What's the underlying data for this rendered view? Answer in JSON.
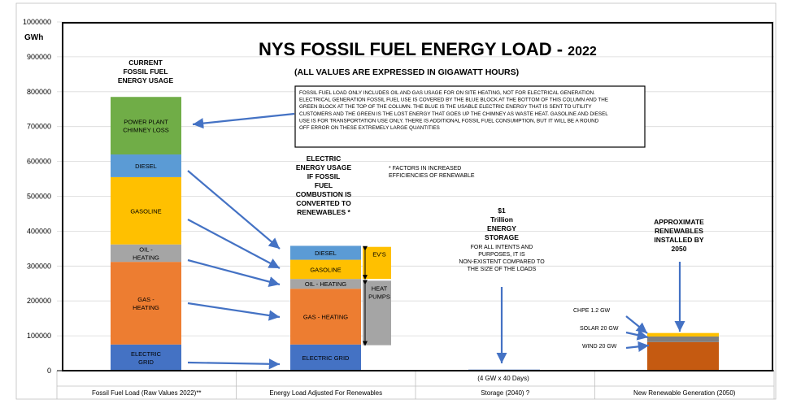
{
  "chart_data": {
    "type": "bar",
    "title": "NYS FOSSIL FUEL ENERGY LOAD - ",
    "title_year": "2022",
    "subtitle": "(ALL VALUES ARE EXPRESSED IN GIGAWATT HOURS)",
    "ylabel": "GWh",
    "ylim": [
      0,
      1000000
    ],
    "yticks": [
      "0",
      "100000",
      "200000",
      "300000",
      "400000",
      "500000",
      "600000",
      "700000",
      "800000",
      "900000",
      "1000000"
    ],
    "grid": true,
    "categories": [
      "Fossil Fuel Load (Raw Values 2022)**",
      "Energy Load Adjusted For Renewables",
      "Storage (2040) ?",
      "New Renewable Generation (2050)"
    ],
    "columns": [
      {
        "segments": [
          {
            "label": "ELECTRIC GRID",
            "value": 75000,
            "color": "#4472c4"
          },
          {
            "label": "GAS - HEATING",
            "value": 237000,
            "color": "#ed7d31"
          },
          {
            "label": "OIL - HEATING",
            "value": 50000,
            "color": "#a5a5a5"
          },
          {
            "label": "GASOLINE",
            "value": 193000,
            "color": "#ffc000"
          },
          {
            "label": "DIESEL",
            "value": 65000,
            "color": "#5b9bd5"
          },
          {
            "label": "POWER PLANT CHIMNEY LOSS",
            "value": 165000,
            "color": "#70ad47"
          }
        ]
      },
      {
        "segments": [
          {
            "label": "ELECTRIC GRID",
            "value": 75000,
            "color": "#4472c4"
          },
          {
            "label": "GAS - HEATING",
            "value": 160000,
            "color": "#ed7d31"
          },
          {
            "label": "OIL - HEATING",
            "value": 28000,
            "color": "#a5a5a5"
          },
          {
            "label": "GASOLINE",
            "value": 55000,
            "color": "#ffc000"
          },
          {
            "label": "DIESEL",
            "value": 40000,
            "color": "#5b9bd5"
          }
        ]
      },
      {
        "segments": [
          {
            "label": "",
            "value": 3000,
            "color": "#4472c4"
          }
        ]
      },
      {
        "segments": [
          {
            "label": "",
            "value": 82000,
            "color": "#c55a11"
          },
          {
            "label": "",
            "value": 16000,
            "color": "#7f7f7f"
          },
          {
            "label": "",
            "value": 10000,
            "color": "#ffc000"
          }
        ]
      }
    ],
    "grouping_boxes": [
      {
        "label": "EV'S",
        "from": 263000,
        "to": 355000,
        "color": "#ffc000"
      },
      {
        "label": "HEAT PUMPS",
        "from": 73000,
        "to": 258000,
        "color": "#a5a5a5"
      }
    ],
    "annotations": {
      "current_usage": "CURRENT FOSSIL FUEL ENERGY USAGE",
      "electric_usage": "ELECTRIC ENERGY USAGE IF FOSSIL FUEL COMBUSTION IS CONVERTED TO RENEWABLES *",
      "factors_note": "* FACTORS IN INCREASED EFFICIENCIES OF RENEWABLE",
      "storage_title": "$1 Trillion ENERGY STORAGE",
      "storage_note": "FOR ALL INTENTS AND PURPOSES, IT IS NON-EXISTENT COMPARED TO THE SIZE OF THE LOADS",
      "storage_sub": "(4 GW x 40 Days)",
      "renewables_title": "APPROXIMATE RENEWABLES INSTALLED BY 2050",
      "chpe": "CHPE  1.2 GW",
      "solar": "SOLAR  20 GW",
      "wind": "WIND  20 GW",
      "note_box": "FOSSIL FUEL LOAD ONLY INCLUDES OIL AND GAS USAGE FOR ON SITE HEATING, NOT FOR ELECTRICAL GENERATION. ELECTRICAL GENERATION FOSSIL FUEL USE IS COVERED BY THE BLUE BLOCK AT THE BOTTOM OF THIS COLUMN AND THE GREEN BLOCK AT THE TOP OF THE COLUMN.  THE BLUE IS THE USABLE ELECTRIC ENERGY THAT IS SENT TO UTILITY CUSTOMERS  AND THE GREEN IS THE LOST ENERGY THAT GOES UP THE CHIMNEY AS WASTE HEAT.  GASOLINE AND DIESEL USE IS FOR TRANSPORTATION USE ONLY.  THERE IS ADDITIONAL FOSSIL FUEL CONSUMPTION, BUT IT WILL BE A ROUND OFF ERROR ON THESE EXTREMELY LARGE QUANTITIES"
    }
  }
}
